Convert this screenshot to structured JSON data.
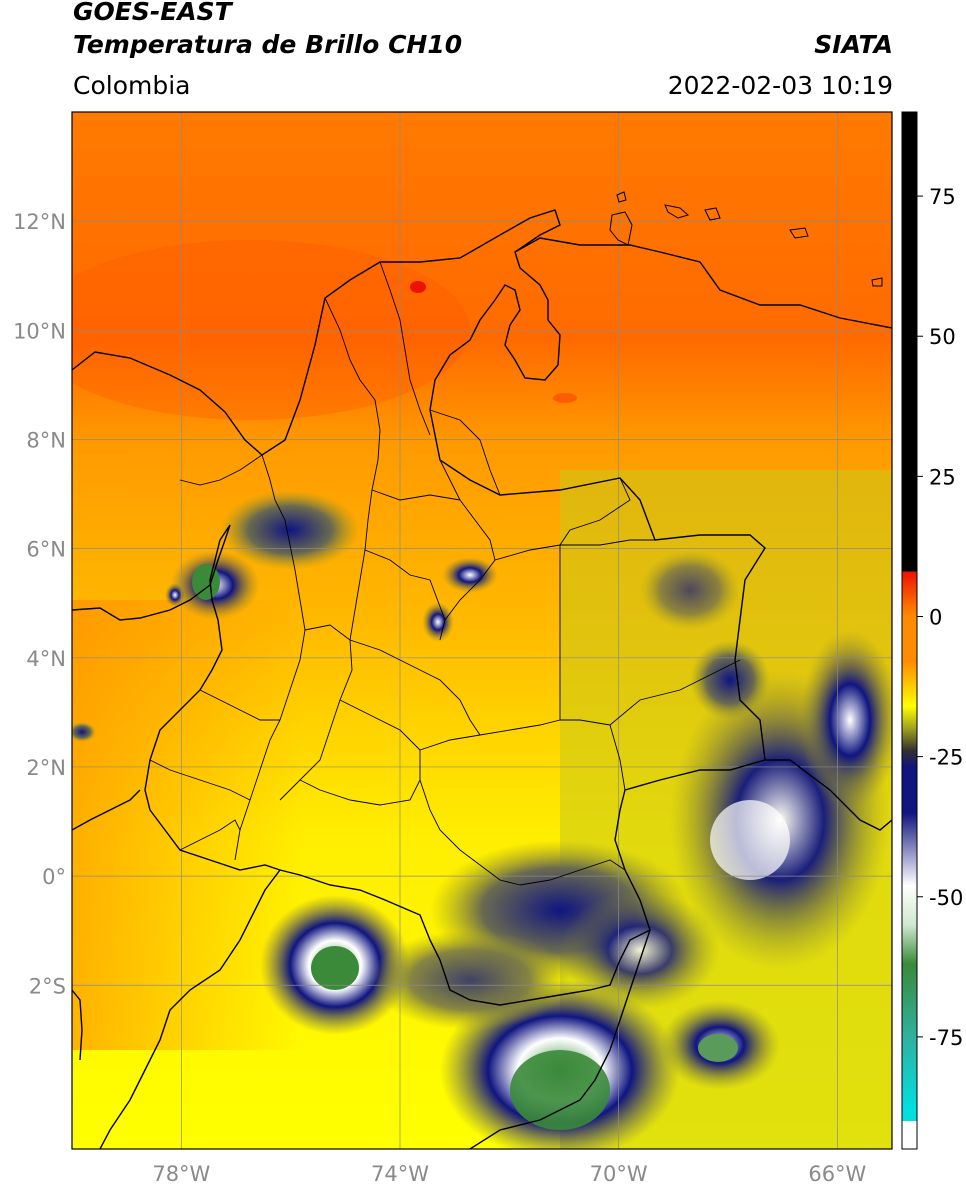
{
  "header": {
    "satellite": "GOES-EAST",
    "product": "Temperatura de Brillo CH10",
    "region": "Colombia",
    "source": "SIATA",
    "datetime": "2022-02-03 10:19"
  },
  "map": {
    "lat_ticks": [
      {
        "value": 12,
        "label": "12°N"
      },
      {
        "value": 10,
        "label": "10°N"
      },
      {
        "value": 8,
        "label": "8°N"
      },
      {
        "value": 6,
        "label": "6°N"
      },
      {
        "value": 4,
        "label": "4°N"
      },
      {
        "value": 2,
        "label": "2°N"
      },
      {
        "value": 0,
        "label": "0°"
      },
      {
        "value": -2,
        "label": "2°S"
      }
    ],
    "lon_ticks": [
      {
        "value": -78,
        "label": "78°W"
      },
      {
        "value": -74,
        "label": "74°W"
      },
      {
        "value": -70,
        "label": "70°W"
      },
      {
        "value": -66,
        "label": "66°W"
      }
    ],
    "lon_range": [
      -80.0,
      -65.0
    ],
    "lat_range": [
      -5.0,
      14.0
    ],
    "grid": true
  },
  "colorbar": {
    "range": [
      -95,
      90
    ],
    "ticks": [
      {
        "value": 75,
        "label": "75"
      },
      {
        "value": 50,
        "label": "50"
      },
      {
        "value": 25,
        "label": "25"
      },
      {
        "value": 0,
        "label": "0"
      },
      {
        "value": -25,
        "label": "-25"
      },
      {
        "value": -50,
        "label": "-50"
      },
      {
        "value": -75,
        "label": "-75"
      }
    ],
    "colors": {
      "black": "#000000",
      "red": "#ee1100",
      "orange": "#ff8c00",
      "yellow": "#ffff00",
      "olive": "#a0a020",
      "navy": "#101580",
      "white": "#ffffff",
      "green": "#3a8a3a",
      "teal": "#30b0a0",
      "cyan": "#00e0e0"
    }
  }
}
